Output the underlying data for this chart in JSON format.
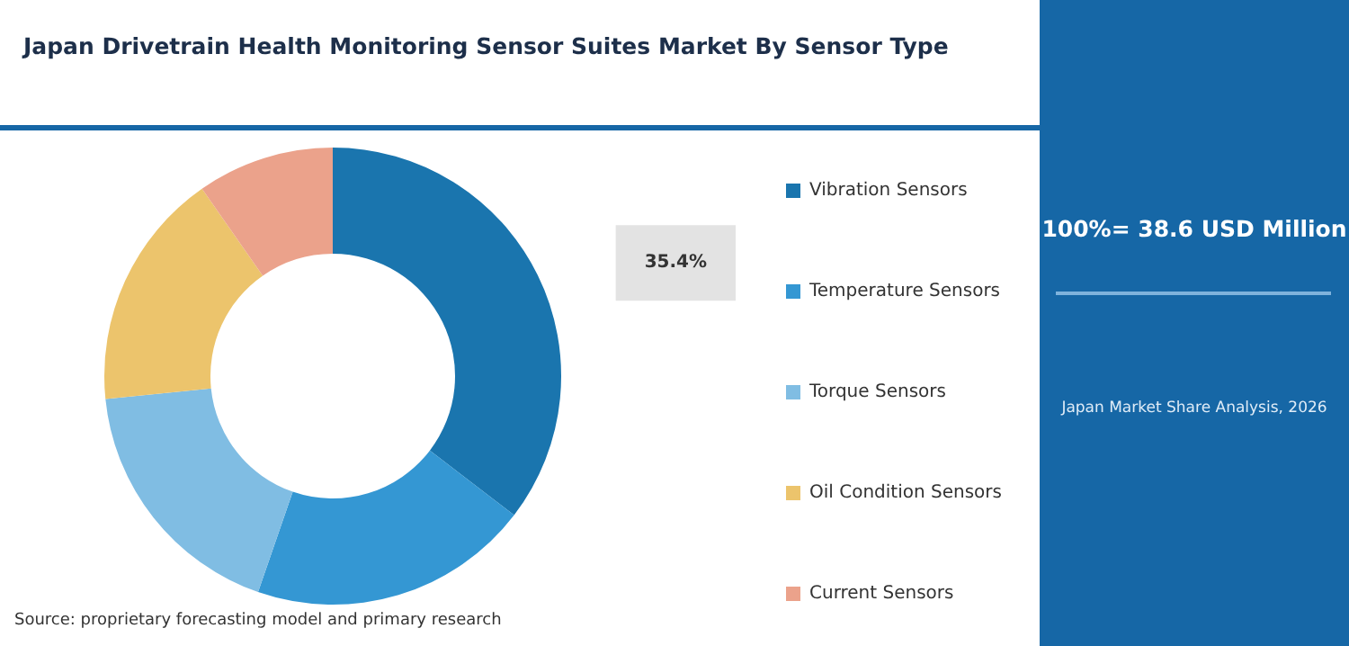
{
  "chart_data": {
    "type": "donut",
    "title": "Japan Drivetrain Health Monitoring Sensor Suites Market By Sensor Type",
    "categories": [
      "Vibration Sensors",
      "Temperature Sensors",
      "Torque Sensors",
      "Oil Condition Sensors",
      "Current Sensors"
    ],
    "values": [
      35.4,
      19.9,
      18.1,
      16.9,
      9.7
    ],
    "colors": [
      "#1a75ae",
      "#3497d3",
      "#80bde3",
      "#ecc46c",
      "#eba28b"
    ],
    "value_labels": [
      "35.4%",
      null,
      null,
      null,
      null
    ],
    "legend": "right",
    "annotations": [
      "Source: proprietary forecasting model and primary research",
      "100%= 38.6 USD Million",
      "Japan Market Share Analysis, 2026"
    ]
  }
}
